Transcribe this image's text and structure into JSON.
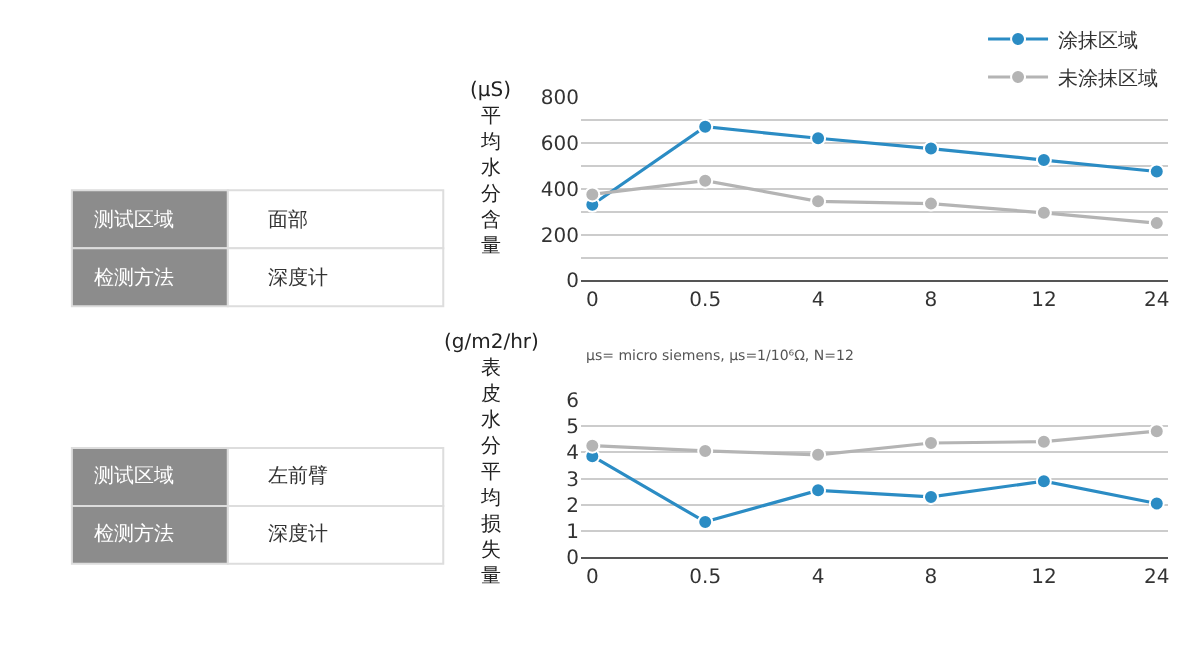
{
  "chart_data": [
    {
      "type": "other",
      "annotations": [
        "测试区域",
        "面部",
        "检测方法",
        "深度计"
      ]
    },
    {
      "type": "line",
      "ylabel": "(μS)平均水分含量",
      "categories": [
        "0",
        "0.5",
        "4",
        "8",
        "12",
        "24"
      ],
      "series": [
        {
          "name": "涂抹区域",
          "color": "#2b8cc4",
          "values": [
            330,
            670,
            620,
            575,
            525,
            475
          ]
        },
        {
          "name": "未涂抹区域",
          "color": "#b4b4b4",
          "values": [
            375,
            435,
            345,
            335,
            295,
            250
          ]
        }
      ],
      "ylim": [
        0,
        800
      ],
      "yticks": [
        0,
        {
          "value": 100,
          "label": null
        },
        200,
        {
          "value": 300,
          "label": null
        },
        400,
        {
          "value": 500,
          "label": null
        },
        600,
        {
          "value": 700,
          "label": null
        },
        800
      ],
      "grid": "y",
      "legend": "top right",
      "marker": "circle",
      "line_style": "solid",
      "annotations": [
        "μs= micro siemens, μs=1/10⁶Ω, N=12"
      ]
    },
    {
      "type": "other",
      "annotations": [
        "测试区域",
        "左前臂",
        "检测方法",
        "深度计"
      ]
    },
    {
      "type": "line",
      "ylabel": "(g/m2/hr)表皮水分平均损失量",
      "categories": [
        "0",
        "0.5",
        "4",
        "8",
        "12",
        "24"
      ],
      "series": [
        {
          "color": "#2b8cc4",
          "values": [
            3.85,
            1.35,
            2.55,
            2.3,
            2.9,
            2.05
          ]
        },
        {
          "color": "#b4b4b4",
          "values": [
            4.25,
            4.05,
            3.9,
            4.35,
            4.4,
            4.8
          ]
        }
      ],
      "ylim": [
        0,
        6
      ],
      "yticks": [
        0,
        1,
        2,
        3,
        4,
        5,
        6
      ],
      "grid": "y",
      "marker": "circle",
      "line_style": "solid"
    }
  ]
}
